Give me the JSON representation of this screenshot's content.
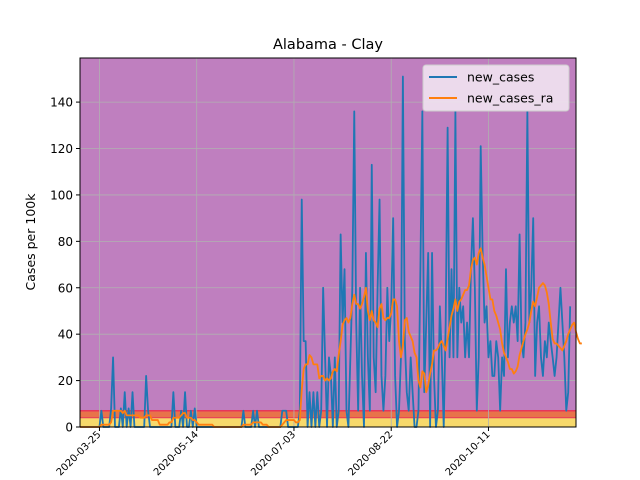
{
  "chart_data": {
    "type": "line",
    "title": "Alabama - Clay",
    "xlabel": "",
    "ylabel": "Cases per 100k",
    "x_start": "2020-03-15",
    "xlim": [
      "2020-03-15",
      "2020-11-25"
    ],
    "ylim": [
      0,
      159
    ],
    "yticks": [
      0,
      20,
      40,
      60,
      80,
      100,
      120,
      140
    ],
    "xticks": [
      "2020-03-25",
      "2020-05-14",
      "2020-07-03",
      "2020-08-22",
      "2020-10-11"
    ],
    "grid": true,
    "legend": "top-right",
    "bands": [
      {
        "from": 0,
        "to": 4,
        "color": "#f7d96b"
      },
      {
        "from": 4,
        "to": 7,
        "color": "#e8734a"
      },
      {
        "from": 7,
        "to": 159,
        "color": "#bf7fbf"
      }
    ],
    "series": [
      {
        "name": "new_cases",
        "color": "#1f77b4",
        "values": [
          0,
          0,
          0,
          0,
          0,
          0,
          0,
          0,
          0,
          0,
          0,
          7,
          0,
          0,
          0,
          0,
          8,
          30,
          0,
          0,
          0,
          8,
          0,
          15,
          0,
          8,
          0,
          15,
          0,
          0,
          0,
          0,
          0,
          0,
          22,
          7,
          0,
          0,
          0,
          0,
          0,
          0,
          0,
          0,
          0,
          0,
          0,
          0,
          15,
          0,
          0,
          0,
          7,
          0,
          15,
          0,
          0,
          7,
          0,
          8,
          0,
          0,
          0,
          0,
          0,
          0,
          0,
          0,
          0,
          0,
          0,
          0,
          0,
          0,
          0,
          0,
          0,
          0,
          0,
          0,
          0,
          0,
          0,
          0,
          7,
          0,
          0,
          0,
          0,
          7,
          0,
          7,
          0,
          0,
          0,
          0,
          0,
          0,
          0,
          0,
          0,
          0,
          0,
          0,
          7,
          7,
          7,
          0,
          0,
          0,
          0,
          0,
          0,
          7,
          98,
          37,
          37,
          0,
          15,
          0,
          15,
          0,
          15,
          0,
          7,
          60,
          30,
          0,
          30,
          22,
          0,
          30,
          0,
          7,
          83,
          45,
          68,
          7,
          0,
          30,
          60,
          136,
          45,
          7,
          60,
          22,
          0,
          75,
          30,
          7,
          113,
          30,
          15,
          60,
          98,
          22,
          7,
          22,
          60,
          37,
          52,
          90,
          22,
          0,
          7,
          30,
          151,
          37,
          15,
          7,
          30,
          15,
          0,
          0,
          7,
          68,
          136,
          15,
          45,
          75,
          0,
          75,
          22,
          0,
          7,
          52,
          30,
          0,
          45,
          129,
          30,
          68,
          30,
          136,
          30,
          60,
          45,
          52,
          30,
          45,
          30,
          68,
          90,
          60,
          7,
          30,
          121,
          75,
          45,
          52,
          30,
          37,
          22,
          22,
          37,
          30,
          7,
          30,
          22,
          68,
          30,
          45,
          52,
          45,
          52,
          37,
          83,
          37,
          30,
          45,
          136,
          45,
          60,
          90,
          22,
          45,
          52,
          30,
          22,
          37,
          30,
          45,
          37,
          30,
          22,
          30,
          45,
          60,
          45,
          30,
          7,
          15,
          52
        ]
      },
      {
        "name": "new_cases_ra",
        "color": "#ff7f0e",
        "values": [
          0,
          0,
          0,
          0,
          0,
          0,
          0,
          0,
          0,
          0,
          0,
          1,
          1,
          1,
          1,
          1,
          2,
          7,
          7,
          7,
          7,
          7,
          6,
          7,
          5,
          5,
          5,
          5,
          5,
          5,
          5,
          4,
          4,
          4,
          5,
          5,
          5,
          3,
          3,
          3,
          3,
          1,
          1,
          1,
          1,
          1,
          2,
          2,
          4,
          4,
          4,
          4,
          5,
          6,
          6,
          4,
          4,
          4,
          3,
          3,
          2,
          1,
          1,
          1,
          1,
          1,
          1,
          1,
          1,
          0,
          0,
          0,
          0,
          0,
          0,
          0,
          0,
          0,
          0,
          0,
          0,
          0,
          0,
          0,
          1,
          1,
          1,
          1,
          1,
          2,
          2,
          2,
          2,
          2,
          1,
          1,
          1,
          0,
          0,
          0,
          0,
          0,
          0,
          0,
          1,
          2,
          3,
          3,
          3,
          3,
          3,
          2,
          2,
          3,
          16,
          25,
          27,
          27,
          31,
          30,
          27,
          27,
          27,
          21,
          22,
          22,
          20,
          21,
          20,
          21,
          24,
          25,
          24,
          31,
          37,
          44,
          46,
          47,
          45,
          47,
          53,
          57,
          53,
          53,
          51,
          53,
          56,
          60,
          50,
          46,
          50,
          46,
          45,
          43,
          51,
          53,
          47,
          46,
          47,
          47,
          49,
          55,
          55,
          52,
          37,
          30,
          35,
          46,
          47,
          41,
          39,
          37,
          32,
          30,
          20,
          17,
          24,
          23,
          15,
          18,
          23,
          27,
          33,
          33,
          34,
          36,
          37,
          35,
          33,
          38,
          43,
          48,
          51,
          55,
          50,
          54,
          55,
          57,
          59,
          59,
          61,
          68,
          72,
          73,
          70,
          75,
          77,
          73,
          70,
          65,
          60,
          55,
          55,
          50,
          48,
          45,
          42,
          36,
          32,
          30,
          28,
          25,
          25,
          23,
          24,
          26,
          31,
          34,
          37,
          40,
          42,
          45,
          50,
          54,
          52,
          56,
          60,
          61,
          62,
          61,
          58,
          53,
          45,
          38,
          36,
          36,
          35,
          34,
          33,
          35,
          37,
          40,
          42,
          44,
          45,
          41,
          38,
          36,
          36
        ]
      }
    ]
  }
}
